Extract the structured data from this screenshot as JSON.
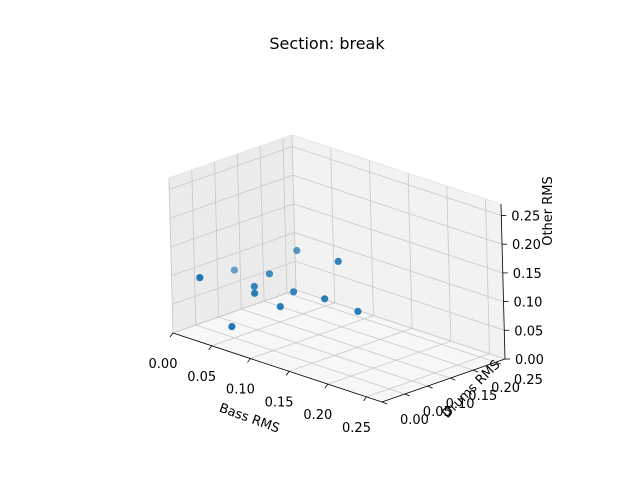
{
  "chart_data": {
    "type": "scatter",
    "title": "Section: break",
    "xlabel": "Bass RMS",
    "ylabel": "Drums RMS",
    "zlabel": "Other RMS",
    "xlim": [
      0,
      0.27
    ],
    "ylim": [
      0,
      0.27
    ],
    "zlim": [
      0,
      0.27
    ],
    "x_ticks": [
      "0.00",
      "0.05",
      "0.10",
      "0.15",
      "0.20",
      "0.25"
    ],
    "y_ticks": [
      "0.00",
      "0.05",
      "0.10",
      "0.15",
      "0.20",
      "0.25"
    ],
    "z_ticks": [
      "0.00",
      "0.05",
      "0.10",
      "0.15",
      "0.20",
      "0.25"
    ],
    "grid": true,
    "colors": {
      "points": "#1f77b4",
      "pane_left": "#ebebeb",
      "pane_back": "#f2f2f2",
      "pane_floor": "#f7f7f7"
    },
    "series": [
      {
        "points": [
          {
            "x": 0.017,
            "y": 0.033,
            "z": 0.095,
            "alpha": 1.0
          },
          {
            "x": 0.058,
            "y": 0.083,
            "z": 0.072,
            "alpha": 0.95
          },
          {
            "x": 0.039,
            "y": 0.072,
            "z": 0.107,
            "alpha": 0.65
          },
          {
            "x": 0.056,
            "y": 0.086,
            "z": 0.082,
            "alpha": 0.9
          },
          {
            "x": 0.066,
            "y": 0.103,
            "z": 0.104,
            "alpha": 0.85
          },
          {
            "x": 0.085,
            "y": 0.132,
            "z": 0.145,
            "alpha": 0.75
          },
          {
            "x": 0.12,
            "y": 0.163,
            "z": 0.133,
            "alpha": 0.9
          },
          {
            "x": 0.085,
            "y": 0.093,
            "z": 0.058,
            "alpha": 0.95
          },
          {
            "x": 0.092,
            "y": 0.111,
            "z": 0.082,
            "alpha": 0.9
          },
          {
            "x": 0.115,
            "y": 0.14,
            "z": 0.072,
            "alpha": 0.95
          },
          {
            "x": 0.15,
            "y": 0.153,
            "z": 0.062,
            "alpha": 0.95
          },
          {
            "x": 0.05,
            "y": 0.045,
            "z": 0.021,
            "alpha": 1.0
          }
        ]
      }
    ]
  }
}
